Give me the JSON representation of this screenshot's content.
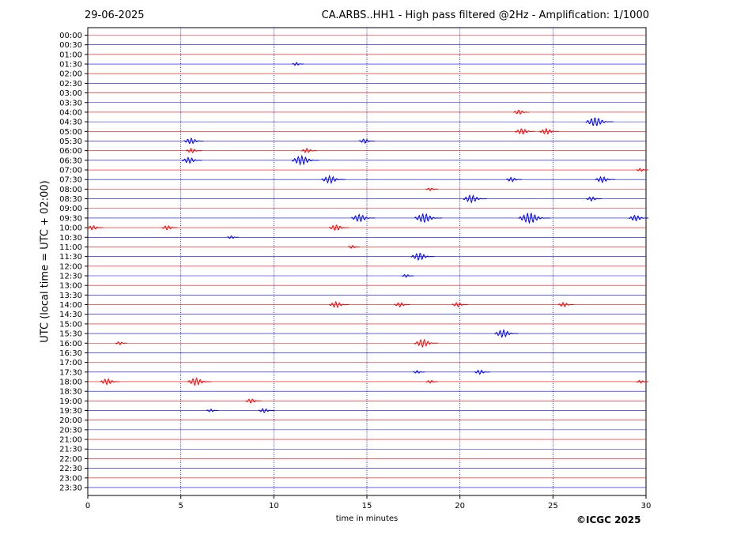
{
  "header": {
    "date": "29-06-2025",
    "title": "CA.ARBS..HH1 - High pass filtered @2Hz - Amplification: 1/1000"
  },
  "footer": {
    "copyright": "©ICGC 2025"
  },
  "colors": {
    "row_a": "#ff0000",
    "row_b": "#0000ff",
    "grid": "#00008b",
    "axis": "#000000"
  },
  "chart_data": {
    "type": "line",
    "xlabel": "time in minutes",
    "ylabel": "UTC (local time = UTC + 02:00)",
    "xlim": [
      0,
      30
    ],
    "x_ticks": [
      0,
      5,
      10,
      15,
      20,
      25,
      30
    ],
    "grid": "vertical dotted at 5-minute ticks",
    "row_colors": "alternating red / blue",
    "rows": [
      "00:00",
      "00:30",
      "01:00",
      "01:30",
      "02:00",
      "02:30",
      "03:00",
      "03:30",
      "04:00",
      "04:30",
      "05:00",
      "05:30",
      "06:00",
      "06:30",
      "07:00",
      "07:30",
      "08:00",
      "08:30",
      "09:00",
      "09:30",
      "10:00",
      "10:30",
      "11:00",
      "11:30",
      "12:00",
      "12:30",
      "13:00",
      "13:30",
      "14:00",
      "14:30",
      "15:00",
      "15:30",
      "16:00",
      "16:30",
      "17:00",
      "17:30",
      "18:00",
      "18:30",
      "19:00",
      "19:30",
      "20:00",
      "20:30",
      "21:00",
      "21:30",
      "22:00",
      "22:30",
      "23:00",
      "23:30"
    ],
    "events": [
      {
        "row": "01:30",
        "minute": 11.3,
        "amplitude": 1
      },
      {
        "row": "04:00",
        "minute": 23.3,
        "amplitude": 2
      },
      {
        "row": "04:30",
        "minute": 27.5,
        "amplitude": 5
      },
      {
        "row": "05:00",
        "minute": 23.5,
        "amplitude": 3
      },
      {
        "row": "05:00",
        "minute": 24.8,
        "amplitude": 3
      },
      {
        "row": "05:30",
        "minute": 5.7,
        "amplitude": 3
      },
      {
        "row": "05:30",
        "minute": 15.0,
        "amplitude": 2
      },
      {
        "row": "06:00",
        "minute": 5.7,
        "amplitude": 2
      },
      {
        "row": "06:00",
        "minute": 11.9,
        "amplitude": 2
      },
      {
        "row": "06:30",
        "minute": 5.6,
        "amplitude": 3
      },
      {
        "row": "06:30",
        "minute": 11.7,
        "amplitude": 5
      },
      {
        "row": "07:00",
        "minute": 29.8,
        "amplitude": 1
      },
      {
        "row": "07:30",
        "minute": 13.2,
        "amplitude": 4
      },
      {
        "row": "07:30",
        "minute": 22.9,
        "amplitude": 2
      },
      {
        "row": "07:30",
        "minute": 27.8,
        "amplitude": 3
      },
      {
        "row": "08:00",
        "minute": 18.5,
        "amplitude": 1
      },
      {
        "row": "08:30",
        "minute": 20.8,
        "amplitude": 4
      },
      {
        "row": "08:30",
        "minute": 27.2,
        "amplitude": 2
      },
      {
        "row": "09:30",
        "minute": 14.8,
        "amplitude": 4
      },
      {
        "row": "09:30",
        "minute": 18.3,
        "amplitude": 5
      },
      {
        "row": "09:30",
        "minute": 24.0,
        "amplitude": 6
      },
      {
        "row": "09:30",
        "minute": 29.6,
        "amplitude": 3
      },
      {
        "row": "10:00",
        "minute": 0.4,
        "amplitude": 2
      },
      {
        "row": "10:00",
        "minute": 4.4,
        "amplitude": 2
      },
      {
        "row": "10:00",
        "minute": 13.5,
        "amplitude": 3
      },
      {
        "row": "10:30",
        "minute": 7.8,
        "amplitude": 1
      },
      {
        "row": "11:00",
        "minute": 14.3,
        "amplitude": 1
      },
      {
        "row": "11:30",
        "minute": 18.0,
        "amplitude": 4
      },
      {
        "row": "12:30",
        "minute": 17.2,
        "amplitude": 1
      },
      {
        "row": "14:00",
        "minute": 13.5,
        "amplitude": 3
      },
      {
        "row": "14:00",
        "minute": 16.9,
        "amplitude": 2
      },
      {
        "row": "14:00",
        "minute": 20.0,
        "amplitude": 2
      },
      {
        "row": "14:00",
        "minute": 25.7,
        "amplitude": 2
      },
      {
        "row": "15:30",
        "minute": 22.5,
        "amplitude": 4
      },
      {
        "row": "16:00",
        "minute": 18.2,
        "amplitude": 4
      },
      {
        "row": "16:00",
        "minute": 1.8,
        "amplitude": 1
      },
      {
        "row": "17:30",
        "minute": 21.2,
        "amplitude": 2
      },
      {
        "row": "17:30",
        "minute": 17.8,
        "amplitude": 1
      },
      {
        "row": "18:00",
        "minute": 1.2,
        "amplitude": 3
      },
      {
        "row": "18:00",
        "minute": 6.0,
        "amplitude": 4
      },
      {
        "row": "18:00",
        "minute": 18.5,
        "amplitude": 1
      },
      {
        "row": "18:00",
        "minute": 29.8,
        "amplitude": 1
      },
      {
        "row": "19:00",
        "minute": 8.9,
        "amplitude": 2
      },
      {
        "row": "19:30",
        "minute": 9.6,
        "amplitude": 2
      },
      {
        "row": "19:30",
        "minute": 6.7,
        "amplitude": 1
      }
    ]
  }
}
